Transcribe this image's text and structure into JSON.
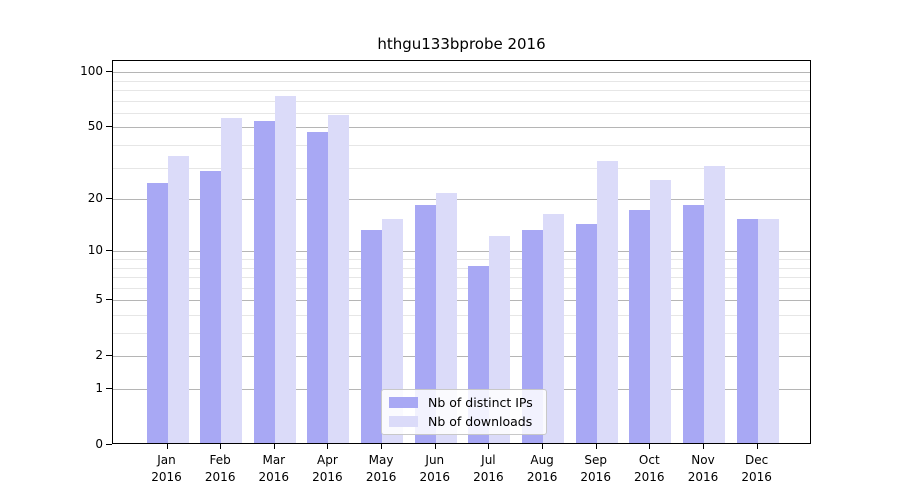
{
  "title": "hthgu133bprobe 2016",
  "legend": {
    "items": [
      {
        "label": "Nb of distinct IPs",
        "color": "#a8a8f4"
      },
      {
        "label": "Nb of downloads",
        "color": "#dbdbf9"
      }
    ]
  },
  "axes": {
    "y_major_ticks": [
      100,
      50,
      20,
      10,
      5,
      2,
      1,
      0
    ],
    "y_minor_ticks": [
      3,
      4,
      6,
      7,
      8,
      9,
      30,
      40,
      60,
      70,
      80,
      90
    ],
    "x_tick_year": "2016"
  },
  "colors": {
    "bar_distinct_ips": "#a8a8f4",
    "bar_downloads": "#dbdbf9",
    "grid_major": "#b5b5b5",
    "grid_minor": "#e6e6e6",
    "axis": "#000000"
  },
  "chart_data": {
    "type": "bar",
    "title": "hthgu133bprobe 2016",
    "xlabel": "",
    "ylabel": "",
    "scale": "log10(1+y)",
    "ylim": [
      0,
      115
    ],
    "grid": "on (major + minor horizontal)",
    "legend_position": "lower center inside plot",
    "categories": [
      "Jan",
      "Feb",
      "Mar",
      "Apr",
      "May",
      "Jun",
      "Jul",
      "Aug",
      "Sep",
      "Oct",
      "Nov",
      "Dec"
    ],
    "year": "2016",
    "series": [
      {
        "name": "Nb of distinct IPs",
        "values": [
          24,
          28,
          53,
          46,
          13,
          18,
          8,
          13,
          14,
          17,
          18,
          15
        ]
      },
      {
        "name": "Nb of downloads",
        "values": [
          34,
          55,
          72,
          57,
          15,
          21,
          12,
          16,
          32,
          25,
          30,
          15
        ]
      }
    ]
  }
}
